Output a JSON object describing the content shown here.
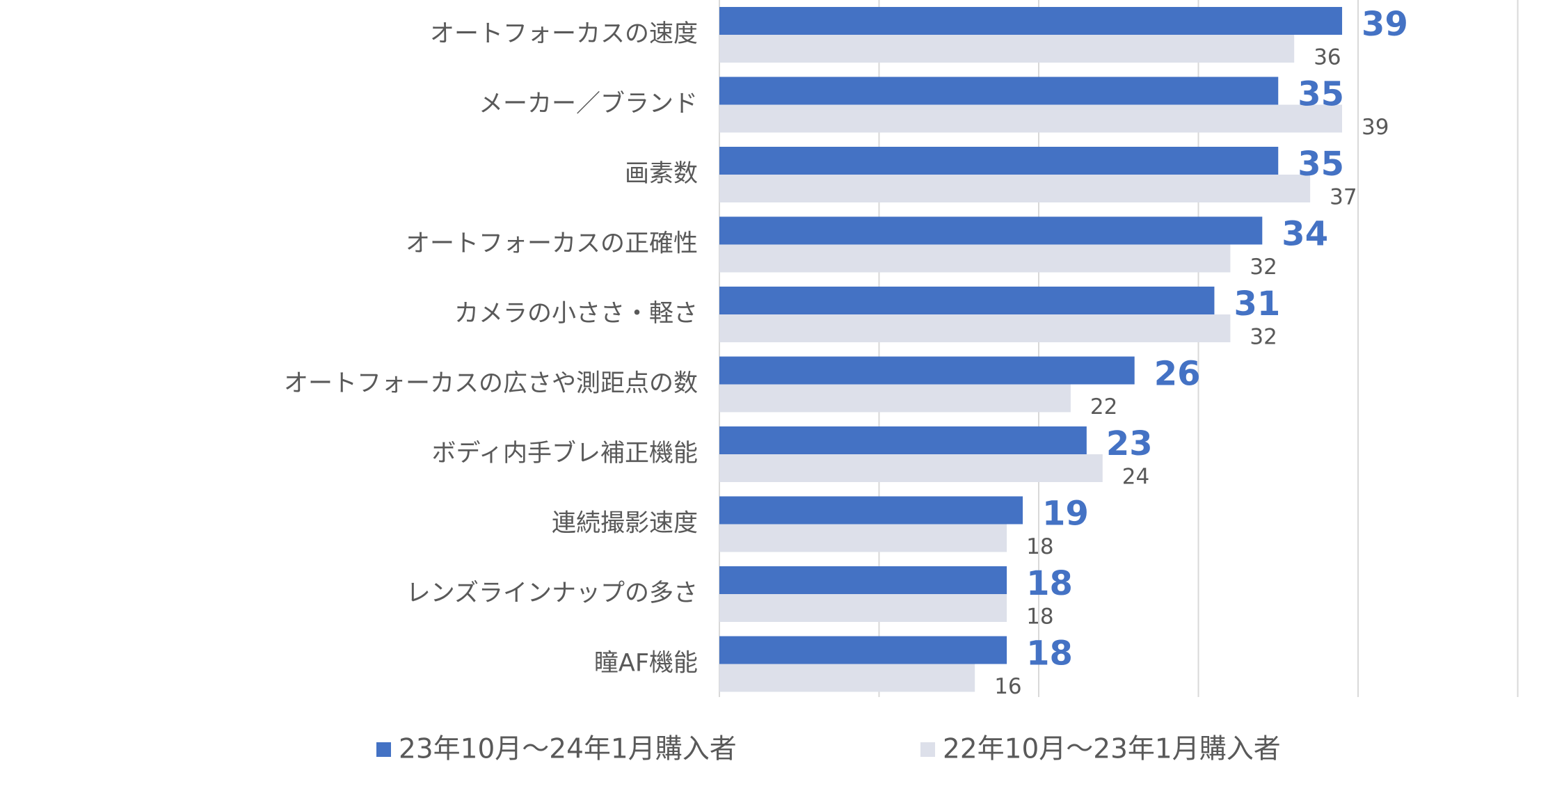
{
  "colors": {
    "series_a": "#4472C4",
    "series_b": "#DDE0EA",
    "grid": "#D9D9D9",
    "text": "#595959"
  },
  "chart_data": {
    "type": "bar",
    "orientation": "horizontal",
    "categories": [
      "オートフォーカスの速度",
      "メーカー／ブランド",
      "画素数",
      "オートフォーカスの正確性",
      "カメラの小ささ・軽さ",
      "オートフォーカスの広さや測距点の数",
      "ボディ内手ブレ補正機能",
      "連続撮影速度",
      "レンズラインナップの多さ",
      "瞳AF機能"
    ],
    "series": [
      {
        "name": "23年10月～24年1月購入者",
        "color": "#4472C4",
        "values": [
          39,
          35,
          35,
          34,
          31,
          26,
          23,
          19,
          18,
          18
        ]
      },
      {
        "name": "22年10月～23年1月購入者",
        "color": "#DDE0EA",
        "values": [
          36,
          39,
          37,
          32,
          32,
          22,
          24,
          18,
          18,
          16
        ]
      }
    ],
    "xlim": [
      0,
      50
    ],
    "grid": true,
    "legend": "bottom"
  }
}
